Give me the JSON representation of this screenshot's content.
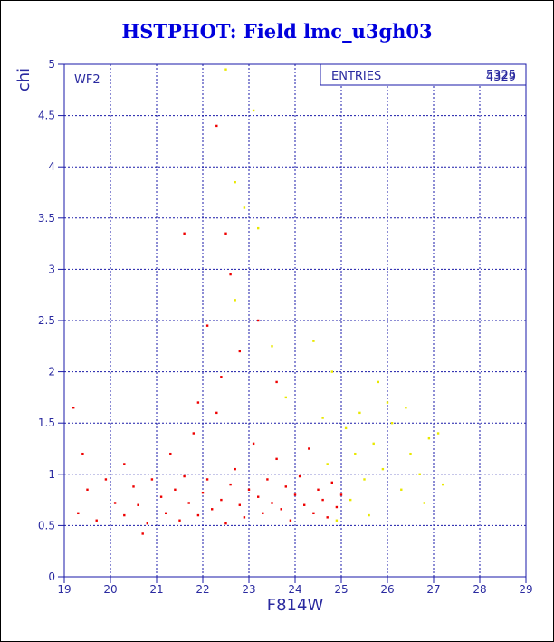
{
  "title": "HSTPHOT: Field lmc_u3gh03",
  "panel_label": "WF2",
  "stats_box": {
    "label": "ENTRIES",
    "value_back": "5325",
    "value_front": "4329"
  },
  "colors": {
    "title": "#0000dd",
    "axis": "#2a2aa0",
    "grid": "#1a1aa8",
    "bright": "#ee0000",
    "faint": "#e8e800"
  },
  "chart_data": {
    "type": "scatter",
    "title": "HSTPHOT: Field lmc_u3gh03",
    "xlabel": "F814W",
    "ylabel": "chi",
    "xlim": [
      19,
      29
    ],
    "ylim": [
      0,
      5
    ],
    "xticks": [
      "19",
      "20",
      "21",
      "22",
      "23",
      "24",
      "25",
      "26",
      "27",
      "28",
      "29"
    ],
    "yticks": [
      "0",
      "0.5",
      "1",
      "1.5",
      "2",
      "2.5",
      "3",
      "3.5",
      "4",
      "4.5",
      "5"
    ],
    "grid": true,
    "entries": 5325,
    "series": [
      {
        "color": "#ee0000",
        "points": [
          [
            19.3,
            0.62
          ],
          [
            19.5,
            0.85
          ],
          [
            19.7,
            0.55
          ],
          [
            19.9,
            0.95
          ],
          [
            20.1,
            0.72
          ],
          [
            20.3,
            0.6
          ],
          [
            20.5,
            0.88
          ],
          [
            20.6,
            0.7
          ],
          [
            20.8,
            0.52
          ],
          [
            20.9,
            0.95
          ],
          [
            21.1,
            0.78
          ],
          [
            21.2,
            0.62
          ],
          [
            21.3,
            1.2
          ],
          [
            21.4,
            0.85
          ],
          [
            21.5,
            0.55
          ],
          [
            21.6,
            0.98
          ],
          [
            21.7,
            0.72
          ],
          [
            21.8,
            1.4
          ],
          [
            21.9,
            0.6
          ],
          [
            22.0,
            0.82
          ],
          [
            22.1,
            0.95
          ],
          [
            22.2,
            0.66
          ],
          [
            22.3,
            1.6
          ],
          [
            22.4,
            0.75
          ],
          [
            22.5,
            0.52
          ],
          [
            22.6,
            0.9
          ],
          [
            22.7,
            1.05
          ],
          [
            22.8,
            0.7
          ],
          [
            22.9,
            0.58
          ],
          [
            23.0,
            0.85
          ],
          [
            23.1,
            1.3
          ],
          [
            23.2,
            0.78
          ],
          [
            23.3,
            0.62
          ],
          [
            23.4,
            0.95
          ],
          [
            23.5,
            0.72
          ],
          [
            23.6,
            1.15
          ],
          [
            23.7,
            0.66
          ],
          [
            23.8,
            0.88
          ],
          [
            23.9,
            0.55
          ],
          [
            24.0,
            0.8
          ],
          [
            24.1,
            0.98
          ],
          [
            24.2,
            0.7
          ],
          [
            24.3,
            1.25
          ],
          [
            24.4,
            0.62
          ],
          [
            24.5,
            0.85
          ],
          [
            24.6,
            0.75
          ],
          [
            24.7,
            0.58
          ],
          [
            24.8,
            0.92
          ],
          [
            24.9,
            0.68
          ],
          [
            25.0,
            0.8
          ],
          [
            22.3,
            4.4
          ],
          [
            22.5,
            3.35
          ],
          [
            21.6,
            3.35
          ],
          [
            22.6,
            2.95
          ],
          [
            22.1,
            2.45
          ],
          [
            22.8,
            2.2
          ],
          [
            22.4,
            1.95
          ],
          [
            21.9,
            1.7
          ],
          [
            19.2,
            1.65
          ],
          [
            19.4,
            1.2
          ],
          [
            20.3,
            1.1
          ],
          [
            20.7,
            0.42
          ],
          [
            23.2,
            2.5
          ],
          [
            23.6,
            1.9
          ]
        ]
      },
      {
        "color": "#e8e800",
        "points": [
          [
            22.5,
            4.95
          ],
          [
            23.1,
            4.55
          ],
          [
            22.7,
            3.85
          ],
          [
            22.9,
            3.6
          ],
          [
            23.2,
            3.4
          ],
          [
            22.7,
            2.7
          ],
          [
            23.5,
            2.25
          ],
          [
            24.4,
            2.3
          ],
          [
            24.8,
            2.0
          ],
          [
            25.1,
            1.45
          ],
          [
            25.3,
            1.2
          ],
          [
            25.5,
            0.95
          ],
          [
            25.7,
            1.3
          ],
          [
            25.9,
            1.05
          ],
          [
            26.1,
            1.5
          ],
          [
            26.3,
            0.85
          ],
          [
            26.5,
            1.2
          ],
          [
            26.7,
            1.0
          ],
          [
            26.9,
            1.35
          ],
          [
            27.2,
            0.9
          ],
          [
            25.2,
            0.75
          ],
          [
            25.6,
            0.6
          ],
          [
            26.0,
            1.7
          ],
          [
            26.4,
            1.65
          ],
          [
            25.8,
            1.9
          ],
          [
            24.7,
            1.1
          ],
          [
            24.9,
            0.55
          ],
          [
            25.4,
            1.6
          ],
          [
            26.8,
            0.72
          ],
          [
            27.1,
            1.4
          ],
          [
            24.6,
            1.55
          ],
          [
            23.8,
            1.75
          ]
        ]
      }
    ]
  }
}
